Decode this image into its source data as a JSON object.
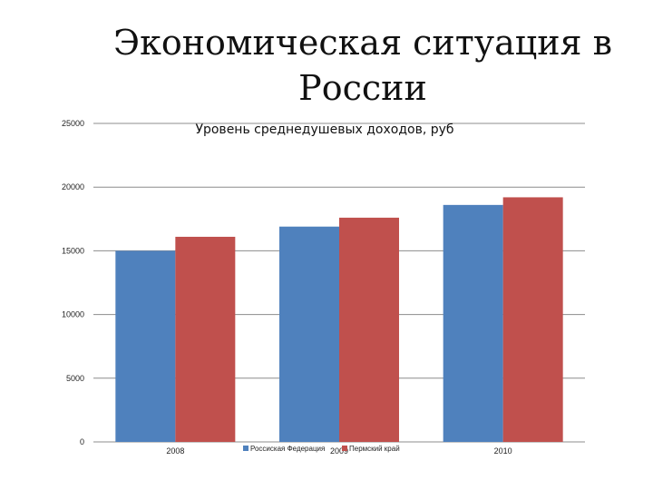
{
  "slide": {
    "title": "Экономическая ситуация в России"
  },
  "colors": {
    "series_1": "#4F81BD",
    "series_2": "#C0504D",
    "grid": "#8C8C8C"
  },
  "chart_data": {
    "type": "bar",
    "title": "Уровень среднедушевых доходов, руб",
    "xlabel": "",
    "ylabel": "",
    "categories": [
      "2008",
      "2009",
      "2010"
    ],
    "series": [
      {
        "name": "Россиская Федерация",
        "values": [
          15000,
          16900,
          18600
        ]
      },
      {
        "name": "Пермский край",
        "values": [
          16100,
          17600,
          19200
        ]
      }
    ],
    "ylim": [
      0,
      25000
    ],
    "yticks": [
      0,
      5000,
      10000,
      15000,
      20000,
      25000
    ],
    "grid": true,
    "legend": "bottom"
  }
}
